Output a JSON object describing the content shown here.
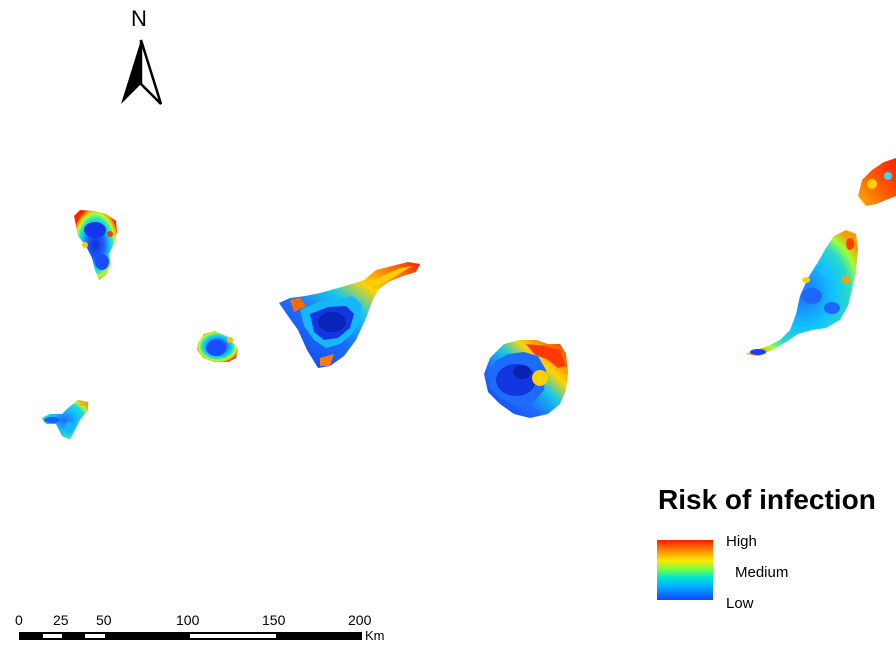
{
  "north_arrow": {
    "label": "N"
  },
  "islands": [
    {
      "id": "la-palma",
      "type": "blue-center"
    },
    {
      "id": "el-hierro",
      "type": "blue-mixed"
    },
    {
      "id": "la-gomera",
      "type": "blue-center"
    },
    {
      "id": "tenerife",
      "type": "blue-center"
    },
    {
      "id": "gran-canaria",
      "type": "blue-center"
    },
    {
      "id": "fuerteventura",
      "type": "blue-mixed"
    },
    {
      "id": "lanzarote",
      "type": "red-orange"
    }
  ],
  "legend": {
    "title": "Risk of infection",
    "high": "High",
    "medium": "Medium",
    "low": "Low",
    "colors": [
      "#ff1a00",
      "#ff8c00",
      "#ffe600",
      "#6cff4a",
      "#00e6d0",
      "#00b4ff",
      "#1446ff"
    ]
  },
  "scale_bar": {
    "ticks": [
      "0",
      "25",
      "50",
      "100",
      "150",
      "200"
    ],
    "unit": "Km"
  }
}
